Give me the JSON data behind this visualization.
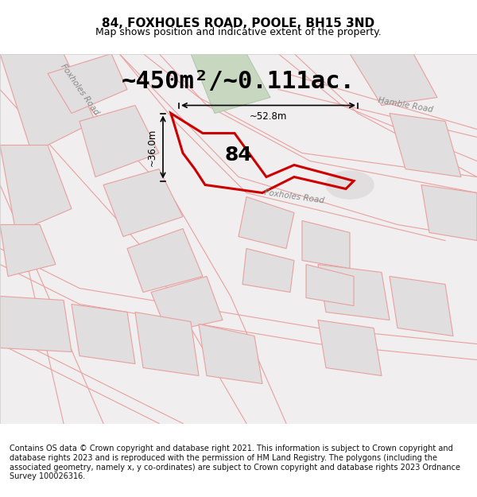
{
  "title": "84, FOXHOLES ROAD, POOLE, BH15 3ND",
  "subtitle": "Map shows position and indicative extent of the property.",
  "area_text": "~450m²/~0.111ac.",
  "width_label": "~52.8m",
  "height_label": "~36.0m",
  "property_number": "84",
  "road_label": "Foxholes Road",
  "road_label2": "Hamble Road",
  "road_label3": "Foxholes Road",
  "footer_text": "Contains OS data © Crown copyright and database right 2021. This information is subject to Crown copyright and database rights 2023 and is reproduced with the permission of HM Land Registry. The polygons (including the associated geometry, namely x, y co-ordinates) are subject to Crown copyright and database rights 2023 Ordnance Survey 100026316.",
  "bg_color": "#f5f5f5",
  "map_bg": "#f0eeee",
  "road_fill": "#e8e4e4",
  "green_fill": "#c8d8c0",
  "property_outline_color": "#cc0000",
  "street_line_color": "#e8a0a0",
  "building_fill": "#e0dede",
  "building_outline": "#e8a0a0",
  "title_fontsize": 11,
  "subtitle_fontsize": 9,
  "area_fontsize": 22,
  "label_fontsize": 9,
  "footer_fontsize": 7
}
